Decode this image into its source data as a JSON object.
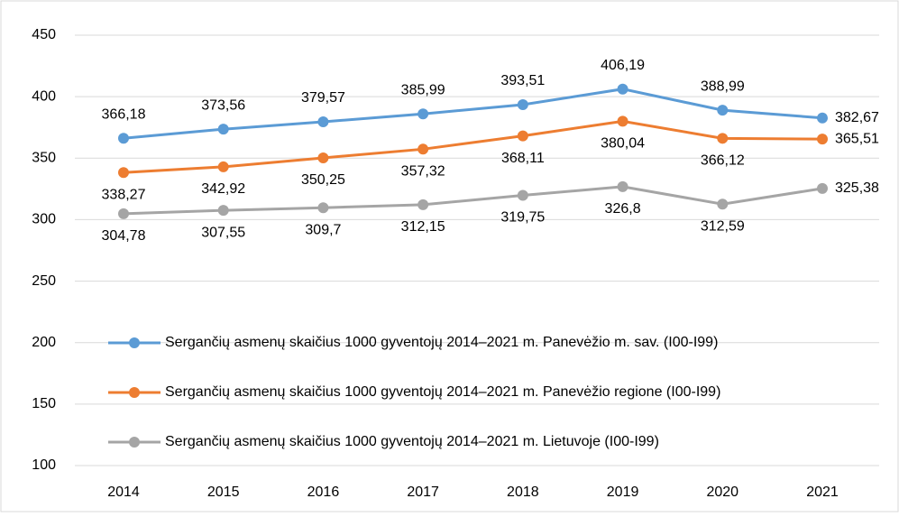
{
  "chart_data": {
    "type": "line",
    "categories": [
      "2014",
      "2015",
      "2016",
      "2017",
      "2018",
      "2019",
      "2020",
      "2021"
    ],
    "series": [
      {
        "name": "Sergančių asmenų skaičius 1000 gyventojų 2014–2021 m. Panevėžio m. sav.  (I00-I99)",
        "color": "#5b9bd5",
        "values": [
          366.18,
          373.56,
          379.57,
          385.99,
          393.51,
          406.19,
          388.99,
          382.67
        ],
        "value_labels": [
          "366,18",
          "373,56",
          "379,57",
          "385,99",
          "393,51",
          "406,19",
          "388,99",
          "382,67"
        ]
      },
      {
        "name": "Sergančių asmenų skaičius 1000 gyventojų 2014–2021 m. Panevėžio regione (I00-I99)",
        "color": "#ed7d31",
        "values": [
          338.27,
          342.92,
          350.25,
          357.32,
          368.11,
          380.04,
          366.12,
          365.51
        ],
        "value_labels": [
          "338,27",
          "342,92",
          "350,25",
          "357,32",
          "368,11",
          "380,04",
          "366,12",
          "365,51"
        ]
      },
      {
        "name": "Sergančių asmenų skaičius 1000 gyventojų 2014–2021 m. Lietuvoje (I00-I99)",
        "color": "#a5a5a5",
        "values": [
          304.78,
          307.55,
          309.7,
          312.15,
          319.75,
          326.8,
          312.59,
          325.38
        ],
        "value_labels": [
          "304,78",
          "307,55",
          "309,7",
          "312,15",
          "319,75",
          "326,8",
          "312,59",
          "325,38"
        ]
      }
    ],
    "ylim": [
      100,
      450
    ],
    "yticks": [
      100,
      150,
      200,
      250,
      300,
      350,
      400,
      450
    ],
    "grid": true,
    "legend": "lower left"
  }
}
